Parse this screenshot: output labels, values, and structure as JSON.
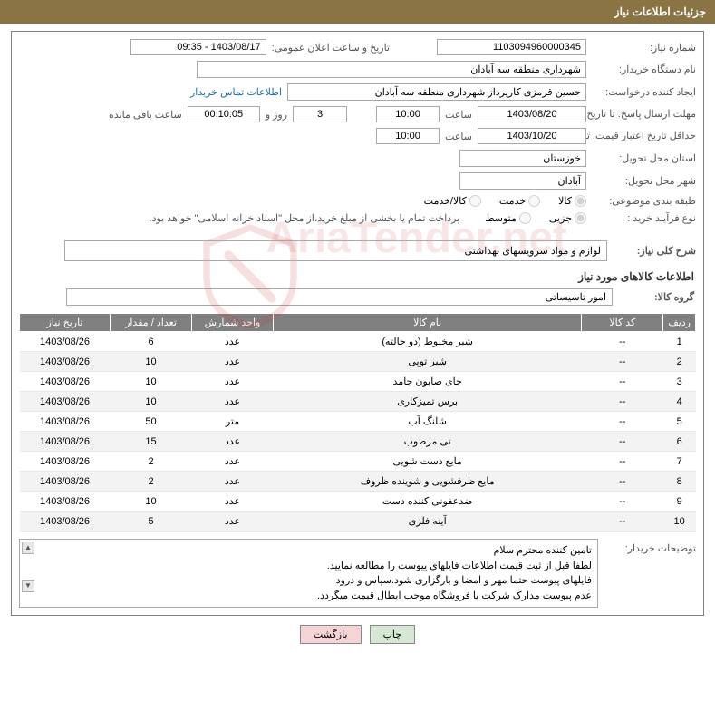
{
  "header": {
    "title": "جزئیات اطلاعات نیاز"
  },
  "fields": {
    "need_number_label": "شماره نیاز:",
    "need_number": "1103094960000345",
    "announce_dt_label": "تاریخ و ساعت اعلان عمومی:",
    "announce_dt": "1403/08/17 - 09:35",
    "buyer_org_label": "نام دستگاه خریدار:",
    "buyer_org": "شهرداری منطقه سه آبادان",
    "requester_label": "ایجاد کننده درخواست:",
    "requester": "حسین قرمزی کارپرداز شهرداری منطقه سه آبادان",
    "buyer_contact_link": "اطلاعات تماس خریدار",
    "reply_deadline_label": "مهلت ارسال پاسخ:   تا تاریخ:",
    "reply_deadline_date": "1403/08/20",
    "hour_label": "ساعت",
    "reply_deadline_time": "10:00",
    "days_value": "3",
    "days_and_label": "روز و",
    "remaining_time": "00:10:05",
    "remaining_label": "ساعت باقی مانده",
    "price_validity_label": "حداقل تاریخ اعتبار قیمت:  تا تاریخ:",
    "price_validity_date": "1403/10/20",
    "price_validity_time": "10:00",
    "deliv_province_label": "استان محل تحویل:",
    "deliv_province": "خوزستان",
    "deliv_city_label": "شهر محل تحویل:",
    "deliv_city": "آبادان",
    "topic_class_label": "طبقه بندی موضوعی:",
    "radio_goods": "کالا",
    "radio_service": "خدمت",
    "radio_goods_service": "کالا/خدمت",
    "process_type_label": "نوع فرآیند خرید :",
    "radio_partial": "جزیی",
    "radio_medium": "متوسط",
    "payment_note": "پرداخت تمام یا بخشی از مبلغ خرید،از محل \"اسناد خزانه اسلامی\" خواهد بود."
  },
  "need_desc": {
    "label": "شرح کلی نیاز:",
    "value": "لوازم و مواد سرویسهای بهداشتی"
  },
  "items_section": {
    "header": "اطلاعات کالاهای مورد نیاز",
    "group_label": "گروه کالا:",
    "group_value": "امور تاسیساتی"
  },
  "table": {
    "columns": [
      "ردیف",
      "کد کالا",
      "نام کالا",
      "واحد شمارش",
      "تعداد / مقدار",
      "تاریخ نیاز"
    ],
    "rows": [
      [
        "1",
        "--",
        "شیر مخلوط (دو حالته)",
        "عدد",
        "6",
        "1403/08/26"
      ],
      [
        "2",
        "--",
        "شیر توپی",
        "عدد",
        "10",
        "1403/08/26"
      ],
      [
        "3",
        "--",
        "جای صابون جامد",
        "عدد",
        "10",
        "1403/08/26"
      ],
      [
        "4",
        "--",
        "برس تمیزکاری",
        "عدد",
        "10",
        "1403/08/26"
      ],
      [
        "5",
        "--",
        "شلنگ آب",
        "متر",
        "50",
        "1403/08/26"
      ],
      [
        "6",
        "--",
        "تی مرطوب",
        "عدد",
        "15",
        "1403/08/26"
      ],
      [
        "7",
        "--",
        "مایع دست شویی",
        "عدد",
        "2",
        "1403/08/26"
      ],
      [
        "8",
        "--",
        "مایع ظرفشویی و شوینده ظروف",
        "عدد",
        "2",
        "1403/08/26"
      ],
      [
        "9",
        "--",
        "ضدعفونی کننده دست",
        "عدد",
        "10",
        "1403/08/26"
      ],
      [
        "10",
        "--",
        "آینه فلزی",
        "عدد",
        "5",
        "1403/08/26"
      ]
    ]
  },
  "notes": {
    "label": "توضیحات خریدار:",
    "lines": [
      "تامین کننده محترم سلام",
      "لطفا قبل از ثبت قیمت اطلاعات فایلهای پیوست را مطالعه نمایید.",
      "فایلهای پیوست حتما مهر و امضا و بارگزاری شود.سپاس و درود",
      "عدم پیوست مدارک شرکت یا فروشگاه موجب ابطال قیمت میگردد."
    ]
  },
  "buttons": {
    "print": "چاپ",
    "back": "بازگشت"
  },
  "watermark": {
    "text": "AriaTender.net"
  },
  "colors": {
    "header_bg": "#8b7444",
    "th_bg": "#808080",
    "link": "#1e6db5",
    "btn_print": "#d4e8d4",
    "btn_back": "#f4d4d4"
  }
}
